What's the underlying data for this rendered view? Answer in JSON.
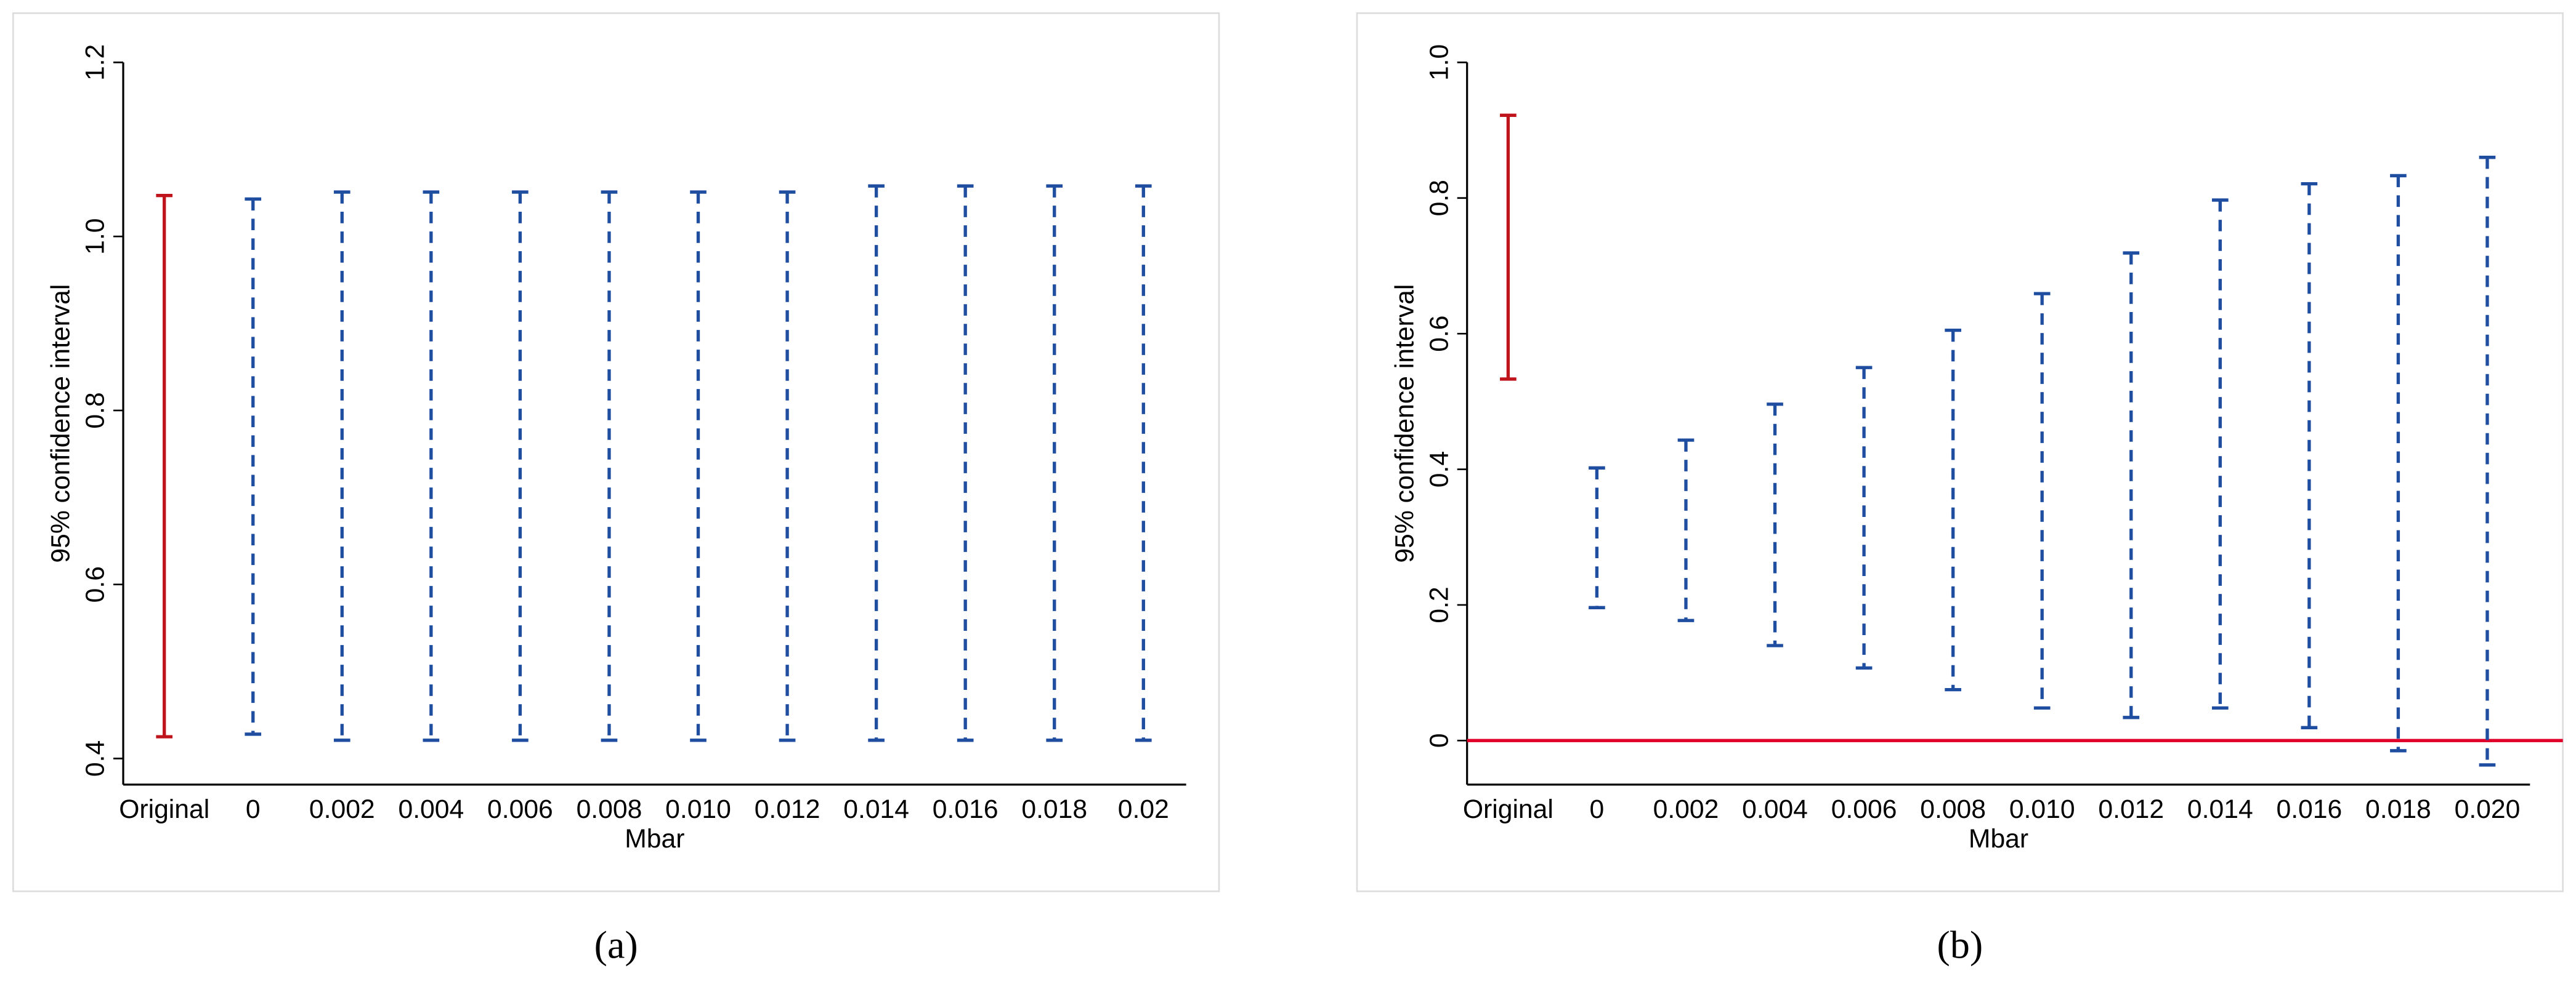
{
  "chart_data": [
    {
      "type": "range",
      "panel_label": "(a)",
      "ylabel": "95% confidence interval",
      "xlabel": "Mbar",
      "categories": [
        "Original",
        "0",
        "0.002",
        "0.004",
        "0.006",
        "0.008",
        "0.010",
        "0.012",
        "0.014",
        "0.016",
        "0.018",
        "0.02"
      ],
      "low": [
        0.425,
        0.428,
        0.421,
        0.421,
        0.421,
        0.421,
        0.421,
        0.421,
        0.421,
        0.421,
        0.421,
        0.421
      ],
      "high": [
        1.047,
        1.043,
        1.051,
        1.051,
        1.051,
        1.051,
        1.051,
        1.051,
        1.058,
        1.058,
        1.058,
        1.058
      ],
      "colors": [
        "#c0141c",
        "#1f4ea0",
        "#1f4ea0",
        "#1f4ea0",
        "#1f4ea0",
        "#1f4ea0",
        "#1f4ea0",
        "#1f4ea0",
        "#1f4ea0",
        "#1f4ea0",
        "#1f4ea0",
        "#1f4ea0"
      ],
      "line_styles": [
        "solid",
        "dashed",
        "dashed",
        "dashed",
        "dashed",
        "dashed",
        "dashed",
        "dashed",
        "dashed",
        "dashed",
        "dashed",
        "dashed"
      ],
      "ylim": [
        0.37,
        1.2
      ],
      "yticks": [
        0.4,
        0.6,
        0.8,
        {
          "value": 1,
          "label": "1.0"
        },
        1.2
      ]
    },
    {
      "type": "range",
      "panel_label": "(b)",
      "ylabel": "95% confidence interval",
      "xlabel": "Mbar",
      "categories": [
        "Original",
        "0",
        "0.002",
        "0.004",
        "0.006",
        "0.008",
        "0.010",
        "0.012",
        "0.014",
        "0.016",
        "0.018",
        "0.020"
      ],
      "low": [
        0.533,
        0.196,
        0.177,
        0.14,
        0.107,
        0.075,
        0.048,
        0.034,
        0.048,
        0.019,
        -0.015,
        -0.036
      ],
      "high": [
        0.922,
        0.402,
        0.443,
        0.496,
        0.55,
        0.605,
        0.659,
        0.719,
        0.797,
        0.821,
        0.833,
        0.86
      ],
      "colors": [
        "#c0141c",
        "#1f4ea0",
        "#1f4ea0",
        "#1f4ea0",
        "#1f4ea0",
        "#1f4ea0",
        "#1f4ea0",
        "#1f4ea0",
        "#1f4ea0",
        "#1f4ea0",
        "#1f4ea0",
        "#1f4ea0"
      ],
      "line_styles": [
        "solid",
        "dashed",
        "dashed",
        "dashed",
        "dashed",
        "dashed",
        "dashed",
        "dashed",
        "dashed",
        "dashed",
        "dashed",
        "dashed"
      ],
      "ylim": [
        -0.065,
        1.0
      ],
      "yticks": [
        0,
        0.2,
        0.4,
        0.6,
        0.8,
        {
          "value": 1,
          "label": "1.0"
        }
      ],
      "hline": {
        "value": 0,
        "color": "#e0002a"
      }
    }
  ]
}
